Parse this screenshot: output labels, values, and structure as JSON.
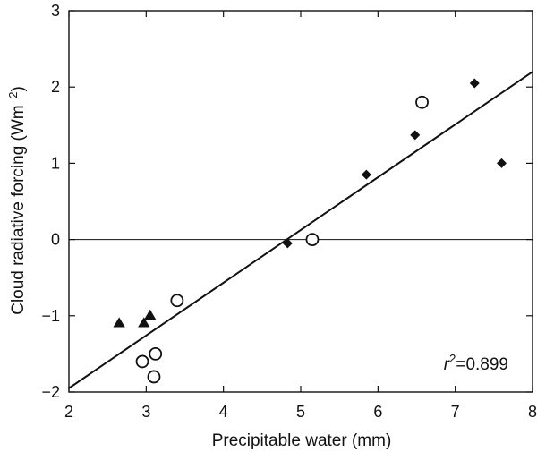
{
  "chart_data": {
    "type": "scatter",
    "title": "",
    "xlabel": "Precipitable water (mm)",
    "ylabel_main": "Cloud radiative forcing (Wm",
    "ylabel_sup": "−2",
    "ylabel_close": ")",
    "xlim": [
      2,
      8
    ],
    "ylim": [
      -2,
      3
    ],
    "xticks": [
      2,
      3,
      4,
      5,
      6,
      7,
      8
    ],
    "yticks": [
      -2,
      -1,
      0,
      1,
      2,
      3
    ],
    "xtick_labels": [
      "2",
      "3",
      "4",
      "5",
      "6",
      "7",
      "8"
    ],
    "ytick_labels": [
      "−2",
      "−1",
      "0",
      "1",
      "2",
      "3"
    ],
    "grid": false,
    "reference_line_y": 0,
    "series": [
      {
        "marker": "triangle",
        "points": [
          [
            2.65,
            -1.1
          ],
          [
            2.97,
            -1.1
          ],
          [
            3.05,
            -1.0
          ]
        ]
      },
      {
        "marker": "open-circle",
        "points": [
          [
            2.95,
            -1.6
          ],
          [
            3.12,
            -1.5
          ],
          [
            3.1,
            -1.8
          ],
          [
            3.4,
            -0.8
          ],
          [
            5.15,
            0.0
          ],
          [
            6.57,
            1.8
          ]
        ]
      },
      {
        "marker": "diamond",
        "points": [
          [
            4.83,
            -0.05
          ],
          [
            5.85,
            0.85
          ],
          [
            6.48,
            1.37
          ],
          [
            7.25,
            2.05
          ],
          [
            7.6,
            1.0
          ]
        ]
      }
    ],
    "fit_line": {
      "x": [
        2,
        8
      ],
      "y": [
        -1.95,
        2.2
      ]
    },
    "annotation": {
      "r_symbol": "r",
      "r_sup": "2",
      "r_value": "=0.899"
    }
  }
}
